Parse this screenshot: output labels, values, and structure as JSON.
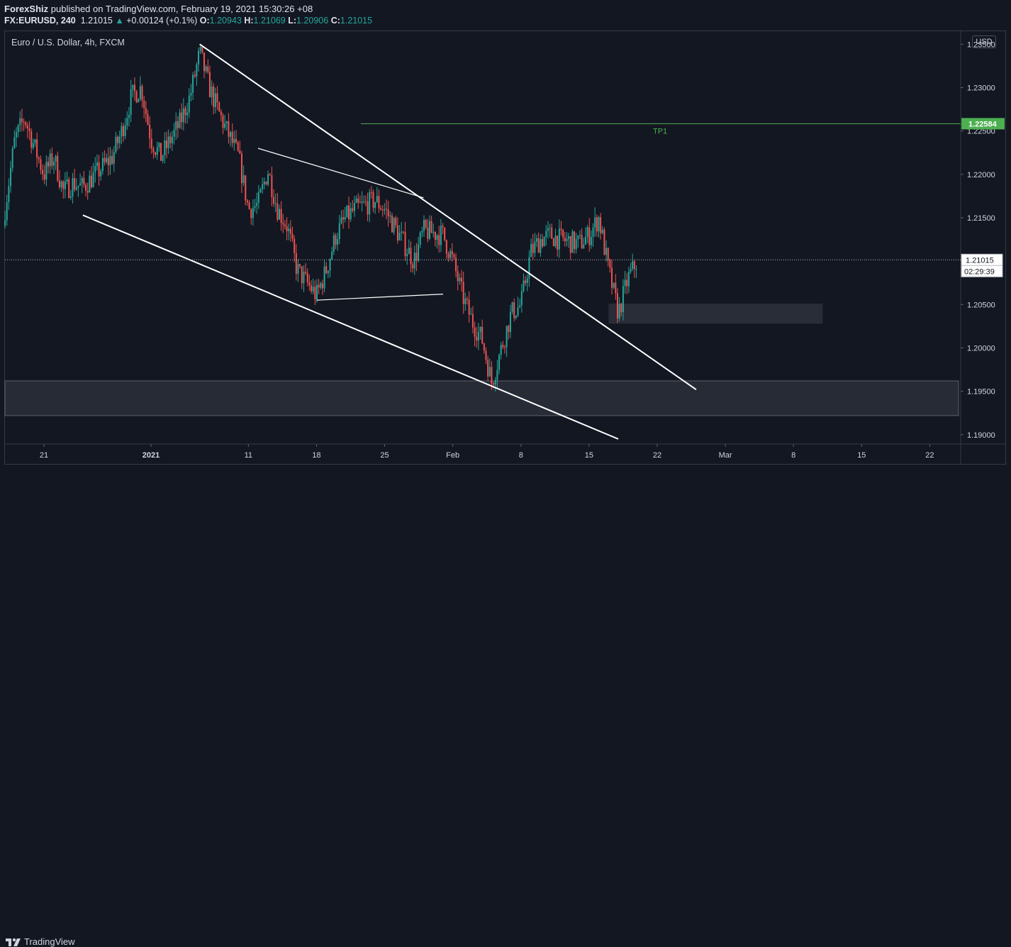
{
  "header": {
    "publisher": "ForexShiz",
    "published_text": "published on TradingView.com, February 19, 2021 15:30:26 +08",
    "symbol": "FX:EURUSD, 240",
    "price": "1.21015",
    "change_arrow": "▲",
    "change": "+0.00124 (+0.1%)",
    "o_label": "O:",
    "o_val": "1.20943",
    "h_label": "H:",
    "h_val": "1.21069",
    "l_label": "L:",
    "l_val": "1.20906",
    "c_label": "C:",
    "c_val": "1.21015"
  },
  "legend": "Euro / U.S. Dollar, 4h, FXCM",
  "currency": "USD",
  "footer": {
    "brand": "TradingView"
  },
  "chart_data": {
    "type": "candlestick",
    "symbol": "EURUSD",
    "timeframe": "4h",
    "ylim": [
      1.189,
      1.2365
    ],
    "y_ticks": [
      "1.23500",
      "1.23000",
      "1.22500",
      "1.22000",
      "1.21500",
      "1.21000",
      "1.20500",
      "1.20000",
      "1.19500",
      "1.19000"
    ],
    "x_ticks": [
      "21",
      "2021",
      "11",
      "18",
      "25",
      "Feb",
      "8",
      "15",
      "22",
      "Mar",
      "8",
      "15",
      "22"
    ],
    "x_tick_dates": [
      "2020-12-21",
      "2021-01-01",
      "2021-01-11",
      "2021-01-18",
      "2021-01-25",
      "2021-02-01",
      "2021-02-08",
      "2021-02-15",
      "2021-02-22",
      "2021-03-01",
      "2021-03-08",
      "2021-03-15",
      "2021-03-22"
    ],
    "last_price": "1.21015",
    "countdown": "02:29:39",
    "tp1": {
      "label": "TP1",
      "price": "1.22584",
      "value": 1.22584
    },
    "colors": {
      "up": "#26a69a",
      "down": "#ef5350",
      "tp": "#4caf50",
      "trend": "#ffffff",
      "zone": "#2a2e39"
    },
    "trendlines": [
      {
        "from": [
          "2021-01-06",
          1.235
        ],
        "to": [
          "2021-02-26",
          1.1952
        ]
      },
      {
        "from": [
          "2020-12-25",
          1.2153
        ],
        "to": [
          "2021-02-18",
          1.1895
        ]
      },
      {
        "from": [
          "2021-01-12",
          1.223
        ],
        "to": [
          "2021-01-29",
          1.2173
        ]
      },
      {
        "from": [
          "2021-01-18",
          1.2055
        ],
        "to": [
          "2021-01-31",
          1.2062
        ]
      }
    ],
    "zones": [
      {
        "from": "2021-02-17",
        "to": "2021-03-11",
        "low": 1.2028,
        "high": 1.2051
      },
      {
        "from": "edge-left",
        "to": "edge-right",
        "low": 1.1922,
        "high": 1.1962
      }
    ],
    "price_path": [
      [
        "2020-12-17",
        1.216
      ],
      [
        "2020-12-18",
        1.224
      ],
      [
        "2020-12-19",
        1.2265
      ],
      [
        "2020-12-21",
        1.22
      ],
      [
        "2020-12-22",
        1.222
      ],
      [
        "2020-12-23",
        1.218
      ],
      [
        "2020-12-24",
        1.219
      ],
      [
        "2020-12-25",
        1.2185
      ],
      [
        "2020-12-28",
        1.222
      ],
      [
        "2020-12-29",
        1.225
      ],
      [
        "2020-12-30",
        1.229
      ],
      [
        "2020-12-31",
        1.23
      ],
      [
        "2021-01-01",
        1.224
      ],
      [
        "2021-01-02",
        1.222
      ],
      [
        "2021-01-04",
        1.226
      ],
      [
        "2021-01-05",
        1.229
      ],
      [
        "2021-01-06",
        1.234
      ],
      [
        "2021-01-07",
        1.23
      ],
      [
        "2021-01-08",
        1.227
      ],
      [
        "2021-01-10",
        1.222
      ],
      [
        "2021-01-11",
        1.216
      ],
      [
        "2021-01-12",
        1.2165
      ],
      [
        "2021-01-13",
        1.2205
      ],
      [
        "2021-01-14",
        1.216
      ],
      [
        "2021-01-15",
        1.214
      ],
      [
        "2021-01-16",
        1.209
      ],
      [
        "2021-01-18",
        1.206
      ],
      [
        "2021-01-19",
        1.209
      ],
      [
        "2021-01-20",
        1.213
      ],
      [
        "2021-01-21",
        1.215
      ],
      [
        "2021-01-22",
        1.216
      ],
      [
        "2021-01-24",
        1.217
      ],
      [
        "2021-01-25",
        1.216
      ],
      [
        "2021-01-26",
        1.214
      ],
      [
        "2021-01-27",
        1.212
      ],
      [
        "2021-01-28",
        1.21
      ],
      [
        "2021-01-29",
        1.2135
      ],
      [
        "2021-01-31",
        1.213
      ],
      [
        "2021-02-01",
        1.21
      ],
      [
        "2021-02-02",
        1.206
      ],
      [
        "2021-02-03",
        1.203
      ],
      [
        "2021-02-04",
        1.201
      ],
      [
        "2021-02-05",
        1.196
      ],
      [
        "2021-02-06",
        1.2
      ],
      [
        "2021-02-07",
        1.204
      ],
      [
        "2021-02-08",
        1.205
      ],
      [
        "2021-02-09",
        1.211
      ],
      [
        "2021-02-10",
        1.2125
      ],
      [
        "2021-02-11",
        1.213
      ],
      [
        "2021-02-12",
        1.2125
      ],
      [
        "2021-02-14",
        1.212
      ],
      [
        "2021-02-15",
        1.213
      ],
      [
        "2021-02-16",
        1.215
      ],
      [
        "2021-02-17",
        1.209
      ],
      [
        "2021-02-18",
        1.204
      ],
      [
        "2021-02-19",
        1.208
      ],
      [
        "2021-02-20",
        1.21015
      ]
    ]
  }
}
